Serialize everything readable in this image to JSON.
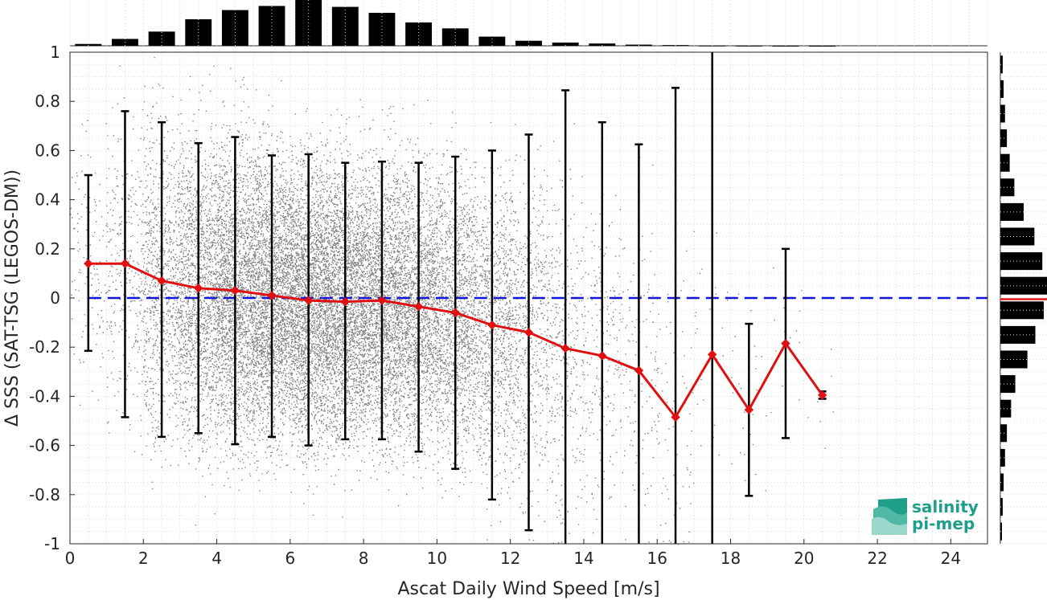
{
  "chart_data": {
    "type": "scatter",
    "xlabel": "Ascat Daily Wind Speed [m/s]",
    "ylabel": "Δ SSS (SAT-TSG (LEGOS-DM))",
    "xlim": [
      0,
      25
    ],
    "ylim": [
      -1,
      1
    ],
    "x_ticks": [
      "0",
      "2",
      "4",
      "6",
      "8",
      "10",
      "12",
      "14",
      "16",
      "18",
      "20",
      "22",
      "24"
    ],
    "y_ticks": [
      "-1",
      "-0.8",
      "-0.6",
      "-0.4",
      "-0.2",
      "0",
      "0.2",
      "0.4",
      "0.6",
      "0.8",
      "1"
    ],
    "grid": true,
    "reference_line": {
      "y": 0,
      "style": "dashed",
      "color": "#1515d8"
    },
    "binned_mean": {
      "color": "#e01010",
      "x": [
        0.5,
        1.5,
        2.5,
        3.5,
        4.5,
        5.5,
        6.5,
        7.5,
        8.5,
        9.5,
        10.5,
        11.5,
        12.5,
        13.5,
        14.5,
        15.5,
        16.5,
        17.5,
        18.5,
        19.5,
        20.5
      ],
      "mean": [
        0.14,
        0.14,
        0.07,
        0.04,
        0.03,
        0.01,
        -0.01,
        -0.015,
        -0.01,
        -0.035,
        -0.06,
        -0.11,
        -0.14,
        -0.205,
        -0.235,
        -0.295,
        -0.485,
        -0.23,
        -0.455,
        -0.185,
        -0.395
      ],
      "upper": [
        0.5,
        0.76,
        0.715,
        0.63,
        0.655,
        0.58,
        0.585,
        0.55,
        0.555,
        0.55,
        0.575,
        0.6,
        0.665,
        0.845,
        0.715,
        0.625,
        0.855,
        1.0,
        -0.105,
        0.2,
        -0.38
      ],
      "lower": [
        -0.215,
        -0.485,
        -0.565,
        -0.55,
        -0.595,
        -0.565,
        -0.6,
        -0.575,
        -0.575,
        -0.625,
        -0.695,
        -0.82,
        -0.945,
        -1.0,
        -1.0,
        -1.0,
        -1.0,
        -1.0,
        -0.805,
        -0.57,
        -0.41
      ]
    },
    "scatter_cloud": {
      "color": "#808080",
      "x_centers": [
        0.5,
        1.5,
        2.5,
        3.5,
        4.5,
        5.5,
        6.5,
        7.5,
        8.5,
        9.5,
        10.5,
        11.5,
        12.5,
        13.5,
        14.5,
        15.5,
        16.5,
        17.5,
        18.5,
        19.5,
        20.5
      ],
      "relative_density": [
        0.05,
        0.12,
        0.35,
        0.6,
        0.85,
        0.95,
        1.0,
        0.95,
        0.85,
        0.7,
        0.55,
        0.4,
        0.25,
        0.14,
        0.08,
        0.05,
        0.03,
        0.01,
        0.01,
        0.005,
        0.003
      ],
      "spread": [
        0.45,
        0.55,
        0.58,
        0.55,
        0.55,
        0.52,
        0.52,
        0.5,
        0.5,
        0.5,
        0.52,
        0.55,
        0.58,
        0.6,
        0.6,
        0.6,
        0.6,
        0.6,
        0.4,
        0.35,
        0.2
      ]
    },
    "top_histogram": {
      "x_centers": [
        0.5,
        1.5,
        2.5,
        3.5,
        4.5,
        5.5,
        6.5,
        7.5,
        8.5,
        9.5,
        10.5,
        11.5,
        12.5,
        13.5,
        14.5,
        15.5,
        16.5,
        17.5,
        18.5,
        19.5,
        20.5
      ],
      "relative_counts": [
        0.04,
        0.15,
        0.31,
        0.58,
        0.78,
        0.87,
        1.0,
        0.85,
        0.72,
        0.51,
        0.38,
        0.2,
        0.11,
        0.07,
        0.05,
        0.025,
        0.015,
        0.005,
        0.003,
        0.002,
        0.001
      ]
    },
    "right_histogram": {
      "y_centers": [
        -0.95,
        -0.85,
        -0.75,
        -0.65,
        -0.55,
        -0.45,
        -0.35,
        -0.25,
        -0.15,
        -0.05,
        0.05,
        0.15,
        0.25,
        0.35,
        0.45,
        0.55,
        0.65,
        0.75,
        0.85,
        0.95
      ],
      "relative_counts": [
        0.03,
        0.05,
        0.07,
        0.1,
        0.14,
        0.23,
        0.32,
        0.58,
        0.75,
        0.93,
        1.0,
        0.9,
        0.73,
        0.5,
        0.3,
        0.2,
        0.14,
        0.1,
        0.07,
        0.05
      ],
      "mean_marker_y": -0.005,
      "mean_marker_color": "#e01010"
    }
  },
  "logo": {
    "line1": "salinity",
    "line2": "pi-mep",
    "color": "#1f9e8a"
  }
}
